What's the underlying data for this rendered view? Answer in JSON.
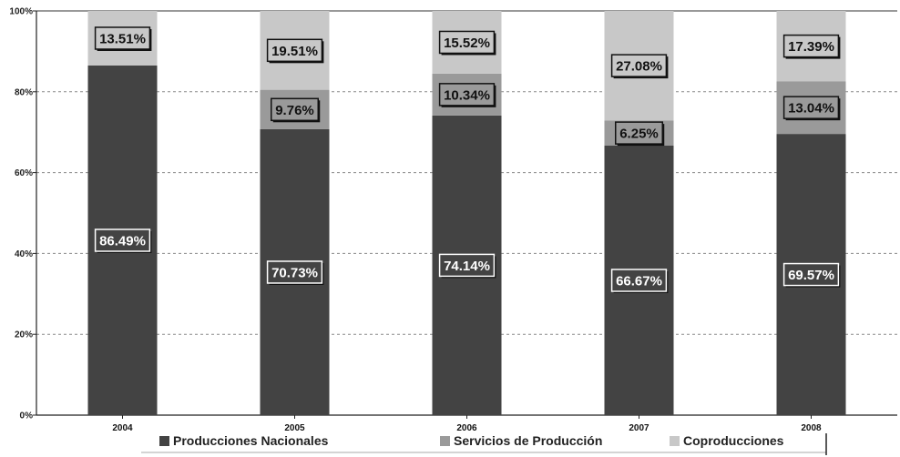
{
  "chart_data": {
    "type": "bar",
    "stacked": true,
    "categories": [
      "2004",
      "2005",
      "2006",
      "2007",
      "2008"
    ],
    "series": [
      {
        "name": "Producciones Nacionales",
        "color": "#434343",
        "values": [
          86.49,
          70.73,
          74.14,
          66.67,
          69.57
        ],
        "labels": [
          "86.49%",
          "70.73%",
          "74.14%",
          "66.67%",
          "69.57%"
        ]
      },
      {
        "name": "Servicios de Producción",
        "color": "#9a9a9a",
        "values": [
          0,
          9.76,
          10.34,
          6.25,
          13.04
        ],
        "labels": [
          "",
          "9.76%",
          "10.34%",
          "6.25%",
          "13.04%"
        ]
      },
      {
        "name": "Coproducciones",
        "color": "#c8c8c8",
        "values": [
          13.51,
          19.51,
          15.52,
          27.08,
          17.39
        ],
        "labels": [
          "13.51%",
          "19.51%",
          "15.52%",
          "27.08%",
          "17.39%"
        ]
      }
    ],
    "ylim": [
      0,
      100
    ],
    "yticks": [
      "0%",
      "20%",
      "40%",
      "60%",
      "80%",
      "100%"
    ],
    "grid": true,
    "legend_position": "bottom"
  }
}
